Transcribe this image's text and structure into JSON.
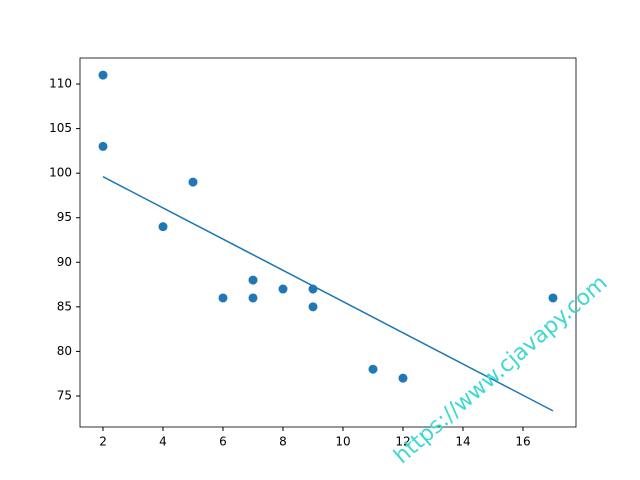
{
  "chart_data": {
    "type": "scatter",
    "x": [
      5,
      7,
      8,
      7,
      2,
      17,
      2,
      9,
      4,
      11,
      12,
      9,
      6
    ],
    "series": [
      {
        "color": "#1f77b4",
        "values": [
          99,
          86,
          87,
          88,
          111,
          86,
          103,
          87,
          94,
          78,
          77,
          85,
          86
        ]
      },
      {
        "color": "#1f77b4",
        "line": true,
        "values": [
          94.35,
          90.85,
          89.1,
          90.85,
          99.6,
          73.33,
          99.6,
          87.34,
          96.1,
          83.84,
          82.09,
          87.34,
          92.6
        ]
      }
    ],
    "xlim": [
      1.233,
      17.767
    ],
    "xticks": [
      2,
      4,
      6,
      8,
      10,
      12,
      14,
      16
    ],
    "ylim": [
      71.52,
      112.92
    ],
    "yticks": [
      75,
      80,
      85,
      90,
      95,
      100,
      105,
      110
    ],
    "watermark": "https://www.cjavapy.com",
    "watermark_color": "#3fd8d0"
  }
}
